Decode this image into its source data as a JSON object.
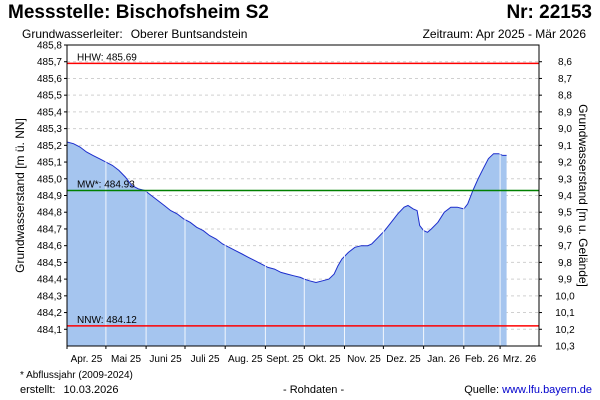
{
  "header": {
    "title": "Messstelle: Bischofsheim S2",
    "nr": "Nr: 22153",
    "aquifer_label": "Grundwasserleiter:",
    "aquifer_value": "Oberer Buntsandstein",
    "period": "Zeitraum: Apr 2025 - Mär 2026"
  },
  "footer": {
    "footnote": "* Abflussjahr (2009-2024)",
    "created_label": "erstellt:",
    "created_date": "10.03.2026",
    "rawdata": "- Rohdaten -",
    "source_label": "Quelle:",
    "source_url": "www.lfu.bayern.de"
  },
  "chart_data": {
    "type": "area",
    "ylabel_left": "Grundwasserstand [m ü. NN]",
    "ylabel_right": "Grundwasserstand [m u. Gelände]",
    "ylim_left": [
      484.0,
      485.8
    ],
    "ylim_right": [
      10.3,
      8.5
    ],
    "y_ticks_left": [
      484.1,
      484.2,
      484.3,
      484.4,
      484.5,
      484.6,
      484.7,
      484.8,
      484.9,
      485.0,
      485.1,
      485.2,
      485.3,
      485.4,
      485.5,
      485.6,
      485.7,
      485.8
    ],
    "y_tick_labels_left": [
      "484,1",
      "484,2",
      "484,3",
      "484,4",
      "484,5",
      "484,6",
      "484,7",
      "484,8",
      "484,9",
      "485,0",
      "485,1",
      "485,2",
      "485,3",
      "485,4",
      "485,5",
      "485,6",
      "485,7",
      "485,8"
    ],
    "y_ticks_right": [
      10.3,
      10.2,
      10.1,
      10.0,
      9.9,
      9.8,
      9.7,
      9.6,
      9.5,
      9.4,
      9.3,
      9.2,
      9.1,
      9.0,
      8.9,
      8.8,
      8.7,
      8.6
    ],
    "y_tick_labels_right": [
      "10,3",
      "10,2",
      "10,1",
      "10,0",
      "9,9",
      "9,8",
      "9,7",
      "9,6",
      "9,5",
      "9,4",
      "9,3",
      "9,2",
      "9,1",
      "9,0",
      "8,9",
      "8,8",
      "8,7",
      "8,6"
    ],
    "xlim": [
      "2025-04-01",
      "2026-03-31"
    ],
    "x_ticks": [
      {
        "date": "2025-04-01",
        "label": "Apr. 25"
      },
      {
        "date": "2025-05-01",
        "label": "Mai 25"
      },
      {
        "date": "2025-06-01",
        "label": "Juni 25"
      },
      {
        "date": "2025-07-01",
        "label": "Juli 25"
      },
      {
        "date": "2025-08-01",
        "label": "Aug. 25"
      },
      {
        "date": "2025-09-01",
        "label": "Sept. 25"
      },
      {
        "date": "2025-10-01",
        "label": "Okt. 25"
      },
      {
        "date": "2025-11-01",
        "label": "Nov. 25"
      },
      {
        "date": "2025-12-01",
        "label": "Dez. 25"
      },
      {
        "date": "2026-01-01",
        "label": "Jan. 26"
      },
      {
        "date": "2026-02-01",
        "label": "Feb. 26"
      },
      {
        "date": "2026-03-01",
        "label": "Mrz. 26"
      }
    ],
    "reference_lines": [
      {
        "label": "HHW: 485.69",
        "value": 485.69,
        "color": "#ff0000"
      },
      {
        "label": "MW*: 484.93",
        "value": 484.93,
        "color": "#008000"
      },
      {
        "label": "NNW: 484.12",
        "value": 484.12,
        "color": "#ff0000"
      }
    ],
    "grid": true,
    "series": [
      {
        "fill_color": "#a5c5ef",
        "line_color": "#1c2dcc",
        "points": [
          [
            "2025-04-01",
            485.22
          ],
          [
            "2025-04-06",
            485.21
          ],
          [
            "2025-04-11",
            485.19
          ],
          [
            "2025-04-16",
            485.16
          ],
          [
            "2025-04-21",
            485.14
          ],
          [
            "2025-04-26",
            485.12
          ],
          [
            "2025-05-01",
            485.1
          ],
          [
            "2025-05-06",
            485.08
          ],
          [
            "2025-05-11",
            485.05
          ],
          [
            "2025-05-16",
            485.01
          ],
          [
            "2025-05-21",
            484.96
          ],
          [
            "2025-05-26",
            484.94
          ],
          [
            "2025-05-31",
            484.93
          ],
          [
            "2025-06-05",
            484.9
          ],
          [
            "2025-06-10",
            484.87
          ],
          [
            "2025-06-15",
            484.84
          ],
          [
            "2025-06-20",
            484.81
          ],
          [
            "2025-06-25",
            484.79
          ],
          [
            "2025-06-30",
            484.76
          ],
          [
            "2025-07-05",
            484.74
          ],
          [
            "2025-07-10",
            484.71
          ],
          [
            "2025-07-15",
            484.69
          ],
          [
            "2025-07-20",
            484.66
          ],
          [
            "2025-07-25",
            484.64
          ],
          [
            "2025-07-30",
            484.61
          ],
          [
            "2025-08-04",
            484.59
          ],
          [
            "2025-08-09",
            484.57
          ],
          [
            "2025-08-14",
            484.55
          ],
          [
            "2025-08-19",
            484.53
          ],
          [
            "2025-08-24",
            484.51
          ],
          [
            "2025-08-29",
            484.49
          ],
          [
            "2025-09-03",
            484.47
          ],
          [
            "2025-09-08",
            484.46
          ],
          [
            "2025-09-13",
            484.44
          ],
          [
            "2025-09-18",
            484.43
          ],
          [
            "2025-09-23",
            484.42
          ],
          [
            "2025-09-28",
            484.41
          ],
          [
            "2025-10-01",
            484.4
          ],
          [
            "2025-10-05",
            484.39
          ],
          [
            "2025-10-10",
            484.38
          ],
          [
            "2025-10-15",
            484.39
          ],
          [
            "2025-10-20",
            484.4
          ],
          [
            "2025-10-24",
            484.43
          ],
          [
            "2025-10-27",
            484.48
          ],
          [
            "2025-10-30",
            484.52
          ],
          [
            "2025-11-04",
            484.56
          ],
          [
            "2025-11-09",
            484.59
          ],
          [
            "2025-11-14",
            484.6
          ],
          [
            "2025-11-19",
            484.6
          ],
          [
            "2025-11-22",
            484.61
          ],
          [
            "2025-11-27",
            484.65
          ],
          [
            "2025-12-02",
            484.69
          ],
          [
            "2025-12-07",
            484.74
          ],
          [
            "2025-12-12",
            484.79
          ],
          [
            "2025-12-17",
            484.83
          ],
          [
            "2025-12-20",
            484.84
          ],
          [
            "2025-12-24",
            484.82
          ],
          [
            "2025-12-27",
            484.81
          ],
          [
            "2025-12-29",
            484.72
          ],
          [
            "2026-01-01",
            484.69
          ],
          [
            "2026-01-04",
            484.68
          ],
          [
            "2026-01-07",
            484.7
          ],
          [
            "2026-01-12",
            484.74
          ],
          [
            "2026-01-17",
            484.8
          ],
          [
            "2026-01-22",
            484.83
          ],
          [
            "2026-01-27",
            484.83
          ],
          [
            "2026-02-01",
            484.82
          ],
          [
            "2026-02-04",
            484.85
          ],
          [
            "2026-02-08",
            484.93
          ],
          [
            "2026-02-12",
            485.0
          ],
          [
            "2026-02-16",
            485.06
          ],
          [
            "2026-02-20",
            485.12
          ],
          [
            "2026-02-24",
            485.15
          ],
          [
            "2026-02-28",
            485.15
          ],
          [
            "2026-03-03",
            485.14
          ],
          [
            "2026-03-06",
            485.14
          ]
        ]
      }
    ]
  }
}
